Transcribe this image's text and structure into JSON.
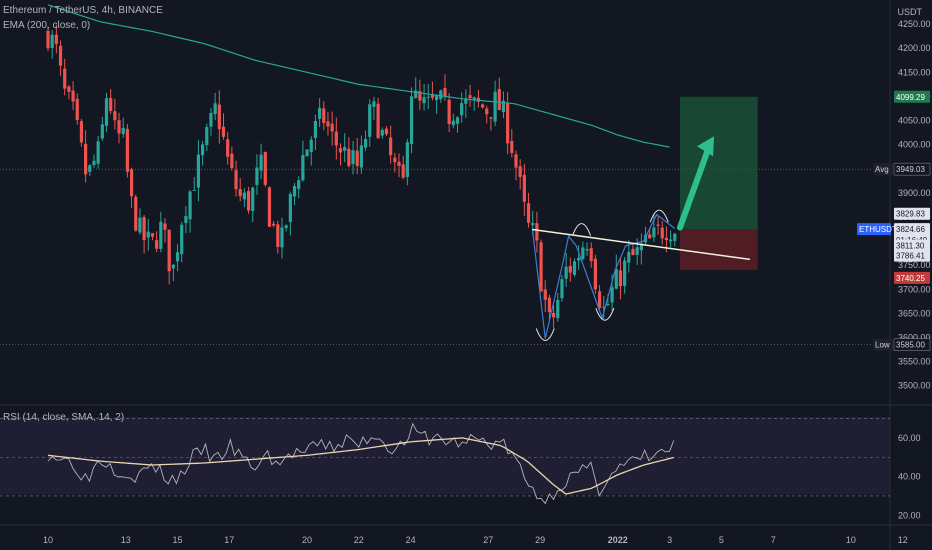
{
  "header": {
    "symbol_line": "Ethereum / TetherUS, 4h, BINANCE",
    "ema_line": "EMA (200, close, 0)",
    "rsi_line": "RSI (14, close, SMA, 14, 2)",
    "currency": "USDT"
  },
  "colors": {
    "background": "#131722",
    "up": "#26a69a",
    "down": "#ef5350",
    "ema": "#26a69a",
    "rsi": "#b2b5be",
    "rsi_ma": "#e8d7b0",
    "target_zone": "#1b5e3b",
    "stop_zone": "#5c1f24",
    "pattern": "#3f7ccf",
    "neckline": "#f2f2d9"
  },
  "chart_data": [
    {
      "type": "candlestick",
      "title": "Ethereum / TetherUS, 4h, BINANCE",
      "y_unit": "USDT",
      "ylim": [
        3460,
        4300
      ],
      "y_ticks": [
        3500,
        3550,
        3600,
        3650,
        3700,
        3750,
        3800,
        3850,
        3900,
        3950,
        4000,
        4050,
        4100,
        4150,
        4200,
        4250
      ],
      "y_tick_labels": [
        "3500.00",
        "3550.00",
        "3600.00",
        "3650.00",
        "3700.00",
        "3750.00",
        "3800.00",
        "3850.00",
        "3900.00",
        "3950.00",
        "4000.00",
        "4050.00",
        "4100.00",
        "4150.00",
        "4200.00",
        "4250.00"
      ],
      "x_day_ticks": [
        {
          "label": "10",
          "day": 0
        },
        {
          "label": "13",
          "day": 3
        },
        {
          "label": "15",
          "day": 5
        },
        {
          "label": "17",
          "day": 7
        },
        {
          "label": "20",
          "day": 10
        },
        {
          "label": "22",
          "day": 12
        },
        {
          "label": "24",
          "day": 14
        },
        {
          "label": "27",
          "day": 17
        },
        {
          "label": "29",
          "day": 19
        },
        {
          "label": "2022",
          "day": 22
        },
        {
          "label": "3",
          "day": 24
        },
        {
          "label": "5",
          "day": 26
        },
        {
          "label": "7",
          "day": 28
        },
        {
          "label": "10",
          "day": 31
        },
        {
          "label": "12",
          "day": 33
        }
      ],
      "anchor_points": [
        [
          0,
          4230
        ],
        [
          0.3,
          4200
        ],
        [
          0.6,
          4110
        ],
        [
          1.0,
          4060
        ],
        [
          1.5,
          3930
        ],
        [
          2.0,
          3990
        ],
        [
          2.3,
          4120
        ],
        [
          2.6,
          4020
        ],
        [
          2.9,
          4010
        ],
        [
          3.2,
          3880
        ],
        [
          3.6,
          3810
        ],
        [
          4.0,
          3790
        ],
        [
          4.4,
          3830
        ],
        [
          4.8,
          3730
        ],
        [
          5.2,
          3860
        ],
        [
          5.6,
          3920
        ],
        [
          6.0,
          3990
        ],
        [
          6.5,
          4080
        ],
        [
          7.0,
          3950
        ],
        [
          7.4,
          3890
        ],
        [
          7.8,
          3880
        ],
        [
          8.2,
          3960
        ],
        [
          8.6,
          3840
        ],
        [
          9.0,
          3790
        ],
        [
          9.4,
          3890
        ],
        [
          9.8,
          3970
        ],
        [
          10.2,
          4020
        ],
        [
          10.6,
          4060
        ],
        [
          11.0,
          4010
        ],
        [
          11.5,
          3980
        ],
        [
          12.0,
          3950
        ],
        [
          12.5,
          4080
        ],
        [
          12.9,
          4020
        ],
        [
          13.3,
          3960
        ],
        [
          13.7,
          3910
        ],
        [
          14.0,
          4120
        ],
        [
          14.3,
          4080
        ],
        [
          14.7,
          4080
        ],
        [
          15.1,
          4090
        ],
        [
          15.5,
          4060
        ],
        [
          15.9,
          4090
        ],
        [
          16.3,
          4080
        ],
        [
          16.7,
          4080
        ],
        [
          17.0,
          4070
        ],
        [
          17.3,
          4090
        ],
        [
          17.6,
          4060
        ],
        [
          17.9,
          4000
        ],
        [
          18.2,
          3920
        ],
        [
          18.5,
          3830
        ],
        [
          18.8,
          3810
        ],
        [
          19.1,
          3700
        ],
        [
          19.4,
          3620
        ],
        [
          19.7,
          3680
        ],
        [
          20.0,
          3740
        ],
        [
          20.3,
          3750
        ],
        [
          20.6,
          3790
        ],
        [
          20.9,
          3810
        ],
        [
          21.2,
          3700
        ],
        [
          21.5,
          3650
        ],
        [
          21.8,
          3700
        ],
        [
          22.1,
          3730
        ],
        [
          22.4,
          3760
        ],
        [
          22.7,
          3770
        ],
        [
          23.0,
          3790
        ],
        [
          23.3,
          3800
        ],
        [
          23.6,
          3820
        ],
        [
          23.9,
          3830
        ],
        [
          24.2,
          3826
        ]
      ],
      "ema200": [
        [
          0,
          4290
        ],
        [
          2,
          4255
        ],
        [
          4,
          4235
        ],
        [
          6,
          4210
        ],
        [
          8,
          4175
        ],
        [
          10,
          4150
        ],
        [
          12,
          4125
        ],
        [
          14,
          4110
        ],
        [
          16,
          4095
        ],
        [
          18,
          4085
        ],
        [
          19,
          4070
        ],
        [
          20,
          4055
        ],
        [
          21,
          4040
        ],
        [
          22,
          4020
        ],
        [
          23,
          4005
        ],
        [
          24.2,
          3993
        ]
      ],
      "price_labels": [
        {
          "label": "4099.29",
          "value": 4099.29,
          "kind": "target"
        },
        {
          "label": "Avg",
          "value": 3949.03,
          "kind": "line-name"
        },
        {
          "label": "3949.03",
          "value": 3949.03,
          "kind": "line"
        },
        {
          "label": "3829.83",
          "value": 3829.83,
          "kind": "plain"
        },
        {
          "label": "ETHUSDT",
          "value": 3824.66,
          "kind": "symbol"
        },
        {
          "label": "3824.66",
          "value": 3824.66,
          "kind": "current"
        },
        {
          "label": "01:16:49",
          "value": 3824.66,
          "kind": "countdown"
        },
        {
          "label": "3811.30",
          "value": 3811.3,
          "kind": "plain"
        },
        {
          "label": "3786.41",
          "value": 3786.41,
          "kind": "plain"
        },
        {
          "label": "3740.25",
          "value": 3740.25,
          "kind": "stop"
        },
        {
          "label": "Low",
          "value": 3585.0,
          "kind": "line-name"
        },
        {
          "label": "3585.00",
          "value": 3585.0,
          "kind": "line"
        }
      ],
      "position": {
        "entry": 3824.66,
        "target": 4099.29,
        "stop": 3740.25,
        "from_day": 24.4,
        "to_day": 27.4
      },
      "horizontal_lines": [
        3949.03,
        3585.0
      ],
      "neckline": {
        "from": [
          18.7,
          3824
        ],
        "to": [
          27.1,
          3762
        ]
      }
    },
    {
      "type": "line",
      "title": "RSI (14, close, SMA, 14, 2)",
      "ylim": [
        15,
        77
      ],
      "y_ticks": [
        20,
        40,
        60
      ],
      "y_tick_labels": [
        "20.00",
        "40.00",
        "60.00"
      ],
      "bands": [
        30,
        50,
        70
      ],
      "rsi_anchor": [
        [
          0,
          52
        ],
        [
          1,
          47
        ],
        [
          1.5,
          38
        ],
        [
          2,
          50
        ],
        [
          2.5,
          45
        ],
        [
          3,
          42
        ],
        [
          3.5,
          40
        ],
        [
          4,
          46
        ],
        [
          4.5,
          40
        ],
        [
          5,
          38
        ],
        [
          5.5,
          49
        ],
        [
          6,
          54
        ],
        [
          6.5,
          48
        ],
        [
          7,
          56
        ],
        [
          7.5,
          49
        ],
        [
          8,
          45
        ],
        [
          8.5,
          51
        ],
        [
          9,
          46
        ],
        [
          9.5,
          53
        ],
        [
          10,
          52
        ],
        [
          10.5,
          57
        ],
        [
          11,
          55
        ],
        [
          11.5,
          59
        ],
        [
          12,
          56
        ],
        [
          12.5,
          62
        ],
        [
          13,
          58
        ],
        [
          13.5,
          53
        ],
        [
          14,
          64
        ],
        [
          14.5,
          60
        ],
        [
          15,
          60
        ],
        [
          15.5,
          58
        ],
        [
          16,
          57
        ],
        [
          16.5,
          60
        ],
        [
          17,
          57
        ],
        [
          17.5,
          58
        ],
        [
          18,
          50
        ],
        [
          18.5,
          36
        ],
        [
          19,
          30
        ],
        [
          19.3,
          27
        ],
        [
          19.6,
          34
        ],
        [
          20,
          38
        ],
        [
          20.5,
          42
        ],
        [
          21,
          44
        ],
        [
          21.3,
          33
        ],
        [
          21.6,
          40
        ],
        [
          22,
          44
        ],
        [
          22.5,
          47
        ],
        [
          23,
          50
        ],
        [
          23.5,
          51
        ],
        [
          24,
          54
        ],
        [
          24.2,
          56
        ]
      ],
      "ma_anchor": [
        [
          0,
          51
        ],
        [
          2,
          48
        ],
        [
          4,
          46
        ],
        [
          6,
          47
        ],
        [
          8,
          49
        ],
        [
          10,
          51
        ],
        [
          12,
          54
        ],
        [
          14,
          58
        ],
        [
          16,
          60
        ],
        [
          17.5,
          56
        ],
        [
          18.5,
          48
        ],
        [
          19.5,
          36
        ],
        [
          20,
          31
        ],
        [
          21,
          34
        ],
        [
          22,
          41
        ],
        [
          23,
          46
        ],
        [
          24.2,
          50
        ]
      ]
    }
  ]
}
